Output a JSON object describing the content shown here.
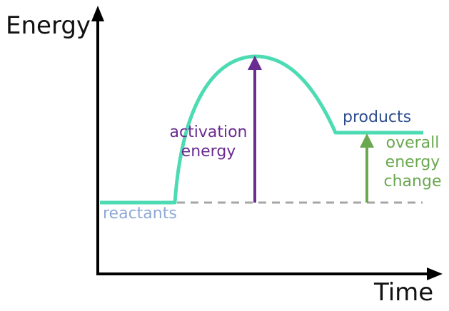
{
  "axes": {
    "y_label": "Energy",
    "x_label": "Time"
  },
  "labels": {
    "reactants": "reactants",
    "products": "products",
    "activation_energy": [
      "activation",
      "energy"
    ],
    "overall_energy_change": [
      "overall",
      "energy",
      "change"
    ]
  },
  "colors": {
    "axis": "#000000",
    "curve": "#4ddbb3",
    "activation": "#6a2c91",
    "overall_change": "#6aa84f",
    "products_text": "#2e4e8f",
    "reactants_text": "#8fa9d6",
    "dashed_line": "#a6a6a6"
  }
}
